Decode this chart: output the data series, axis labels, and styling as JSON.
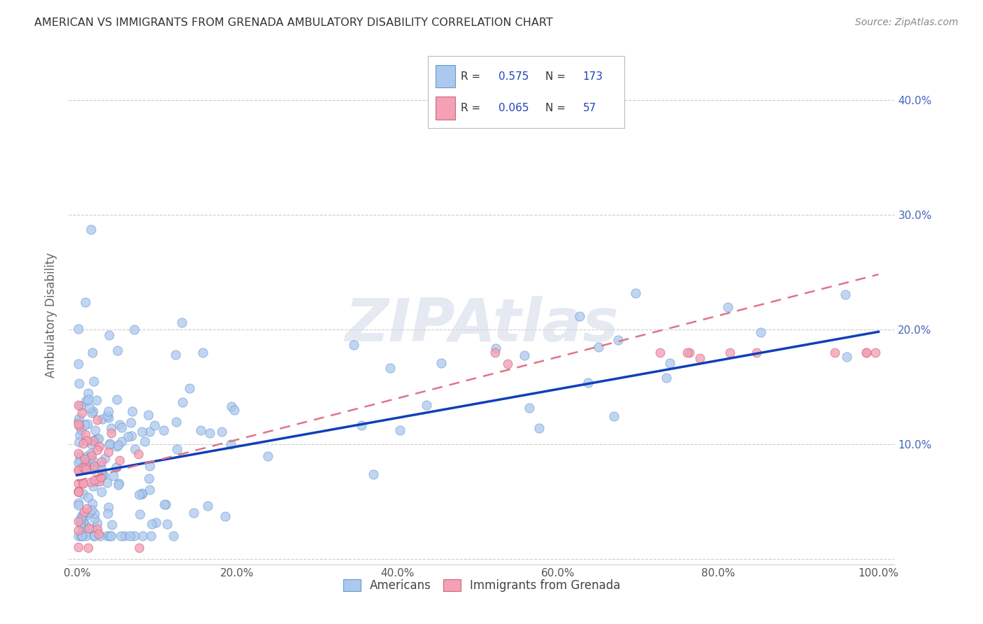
{
  "title": "AMERICAN VS IMMIGRANTS FROM GRENADA AMBULATORY DISABILITY CORRELATION CHART",
  "source": "Source: ZipAtlas.com",
  "ylabel": "Ambulatory Disability",
  "watermark": "ZIPAtlas",
  "legend_R_americans": "0.575",
  "legend_N_americans": "173",
  "legend_R_grenada": "0.065",
  "legend_N_grenada": "57",
  "americans_color": "#adc8ee",
  "grenada_color": "#f4a0b5",
  "line_americans_color": "#1040b8",
  "line_grenada_color": "#e07585",
  "background_color": "#ffffff",
  "grid_color": "#cccccc",
  "title_color": "#333333",
  "source_color": "#888888",
  "xlim": [
    -0.01,
    1.02
  ],
  "ylim": [
    -0.005,
    0.43
  ],
  "xticks": [
    0,
    0.2,
    0.4,
    0.6,
    0.8,
    1.0
  ],
  "yticks": [
    0.0,
    0.1,
    0.2,
    0.3,
    0.4
  ],
  "xticklabels": [
    "0.0%",
    "20.0%",
    "40.0%",
    "60.0%",
    "80.0%",
    "100.0%"
  ],
  "yticklabels": [
    "",
    "10.0%",
    "20.0%",
    "30.0%",
    "40.0%"
  ],
  "line_am_x0": 0.0,
  "line_am_y0": 0.073,
  "line_am_x1": 1.0,
  "line_am_y1": 0.198,
  "line_gr_x0": 0.0,
  "line_gr_y0": 0.068,
  "line_gr_x1": 1.0,
  "line_gr_y1": 0.248
}
